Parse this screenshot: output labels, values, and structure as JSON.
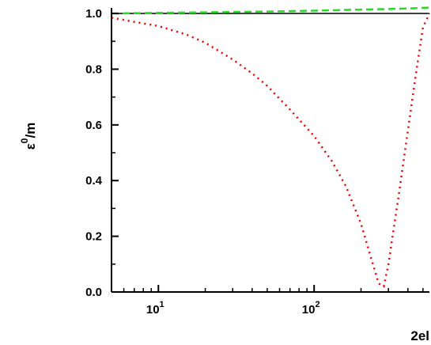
{
  "chart_data": {
    "type": "line",
    "xscale": "log",
    "xlim": [
      5,
      550
    ],
    "ylim": [
      0,
      1.02
    ],
    "xlabel": "2el",
    "ylabel": "ε⁰/m",
    "x_ticks": [
      {
        "value": 10,
        "base": "10",
        "exp": "1"
      },
      {
        "value": 100,
        "base": "10",
        "exp": "2"
      }
    ],
    "y_ticks": [
      {
        "value": 0.0,
        "label": "0.0"
      },
      {
        "value": 0.2,
        "label": "0.2"
      },
      {
        "value": 0.4,
        "label": "0.4"
      },
      {
        "value": 0.6,
        "label": "0.6"
      },
      {
        "value": 0.8,
        "label": "0.8"
      },
      {
        "value": 1.0,
        "label": "1.0"
      }
    ],
    "series": [
      {
        "style": "solid",
        "color": "#000000",
        "x": [
          5,
          550
        ],
        "y": [
          1.0,
          1.0
        ]
      },
      {
        "style": "dashed",
        "color": "#22dd22",
        "x": [
          5,
          10,
          20,
          50,
          100,
          200,
          300,
          400,
          550
        ],
        "y": [
          1.0,
          1.002,
          1.004,
          1.007,
          1.01,
          1.014,
          1.016,
          1.018,
          1.021
        ]
      },
      {
        "style": "dotted",
        "color": "#ee0000",
        "x": [
          5,
          7,
          10,
          15,
          20,
          30,
          40,
          50,
          70,
          100,
          130,
          160,
          200,
          230,
          260,
          280,
          300,
          350,
          400,
          450,
          500,
          550
        ],
        "y": [
          0.985,
          0.97,
          0.955,
          0.925,
          0.895,
          0.835,
          0.785,
          0.74,
          0.655,
          0.56,
          0.47,
          0.38,
          0.245,
          0.13,
          0.03,
          0.02,
          0.1,
          0.35,
          0.58,
          0.78,
          0.95,
          1.0
        ]
      }
    ]
  }
}
